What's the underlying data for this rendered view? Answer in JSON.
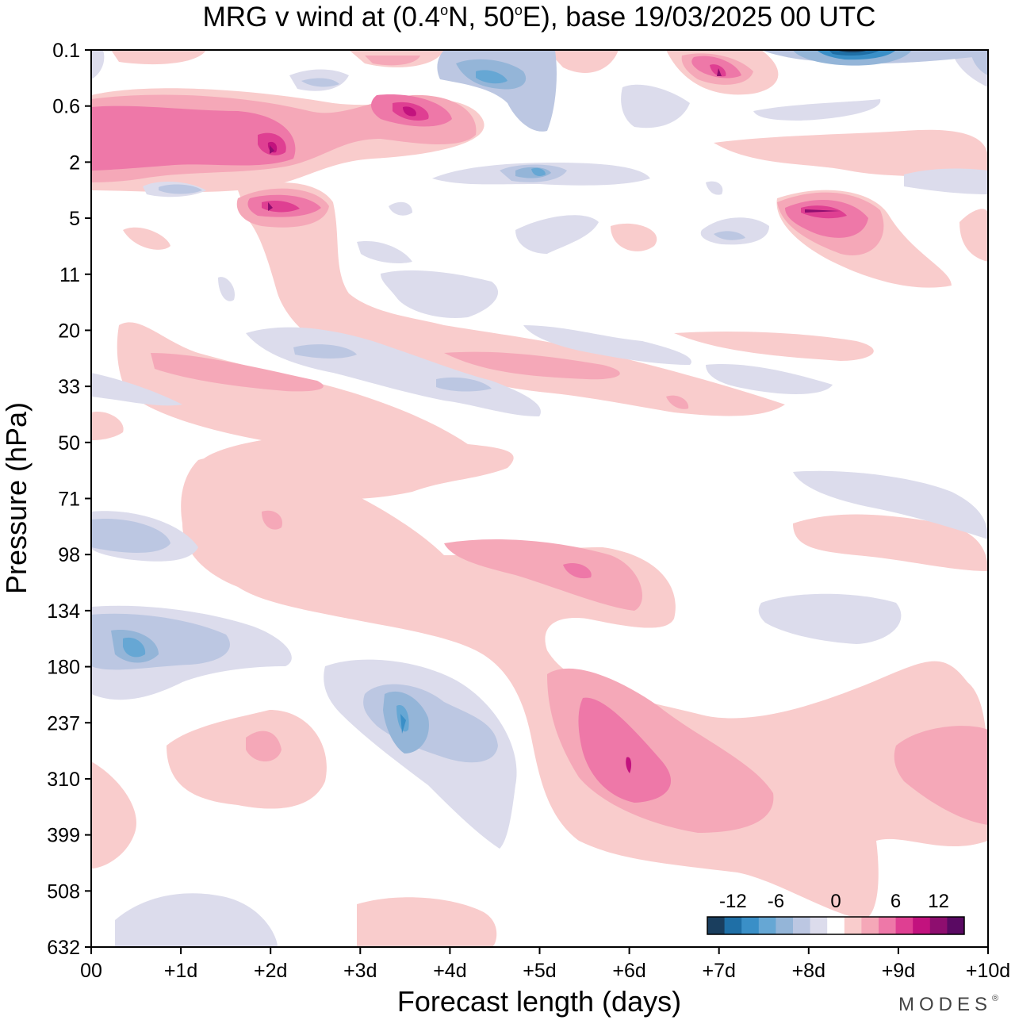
{
  "chart_data": {
    "type": "heatmap",
    "title": {
      "prefix": "MRG v wind at (0.4",
      "o1": "o",
      "mid": "N, 50",
      "o2": "o",
      "suffix": "E),  base 19/03/2025  00 UTC"
    },
    "xlabel": "Forecast length (days)",
    "ylabel": "Pressure (hPa)",
    "x_ticks": [
      "00",
      "+1d",
      "+2d",
      "+3d",
      "+4d",
      "+5d",
      "+6d",
      "+7d",
      "+8d",
      "+9d",
      "+10d"
    ],
    "x_range_days": [
      0,
      10
    ],
    "y_ticks": [
      "0.1",
      "0.6",
      "2",
      "5",
      "11",
      "20",
      "33",
      "50",
      "71",
      "98",
      "134",
      "180",
      "237",
      "310",
      "399",
      "508",
      "632"
    ],
    "y_axis": "pressure, top 0.1 hPa to bottom 632 hPa",
    "colorbar": {
      "labels": [
        "-12",
        "-6",
        "0",
        "6",
        "12"
      ],
      "levels": [
        -15,
        -12,
        -10,
        -8,
        -6,
        -4,
        -2,
        2,
        4,
        6,
        8,
        10,
        12,
        15
      ],
      "colors": [
        "#1a3e5e",
        "#1f6fa6",
        "#3a8fc7",
        "#66a7d4",
        "#94b5d8",
        "#bcc7e2",
        "#dcdcec",
        "#ffffff",
        "#f9cccc",
        "#f5a8b8",
        "#ee78a8",
        "#df3f92",
        "#c2127e",
        "#8e0e6f",
        "#5a0a63"
      ]
    },
    "features": [
      {
        "day": 0.9,
        "p": "0.8",
        "v": 10
      },
      {
        "day": 2.0,
        "p": "1.5",
        "v": 12
      },
      {
        "day": 3.5,
        "p": "0.7",
        "v": 12
      },
      {
        "day": 2.0,
        "p": "4",
        "v": 12
      },
      {
        "day": 7.0,
        "p": "0.2",
        "v": 10
      },
      {
        "day": 8.4,
        "p": "4.5",
        "v": 10
      },
      {
        "day": 4.5,
        "p": "0.25",
        "v": -8
      },
      {
        "day": 8.5,
        "p": "0.1",
        "v": -15
      },
      {
        "day": 5.0,
        "p": "3",
        "v": -6
      },
      {
        "day": 0.5,
        "p": "190",
        "v": -8
      },
      {
        "day": 3.5,
        "p": "230",
        "v": -8
      },
      {
        "day": 0.6,
        "p": "90",
        "v": -6
      },
      {
        "day": 6.0,
        "p": "300",
        "v": 10
      },
      {
        "day": 5.4,
        "p": "105",
        "v": 8
      },
      {
        "day": 2.0,
        "p": "250",
        "v": 4
      },
      {
        "day": 1.5,
        "p": "28",
        "v": 6
      },
      {
        "day": 5.0,
        "p": "28",
        "v": 6
      },
      {
        "day": 9.5,
        "p": "300",
        "v": 6
      }
    ]
  },
  "brand": "MODES",
  "brand_mark": "®"
}
